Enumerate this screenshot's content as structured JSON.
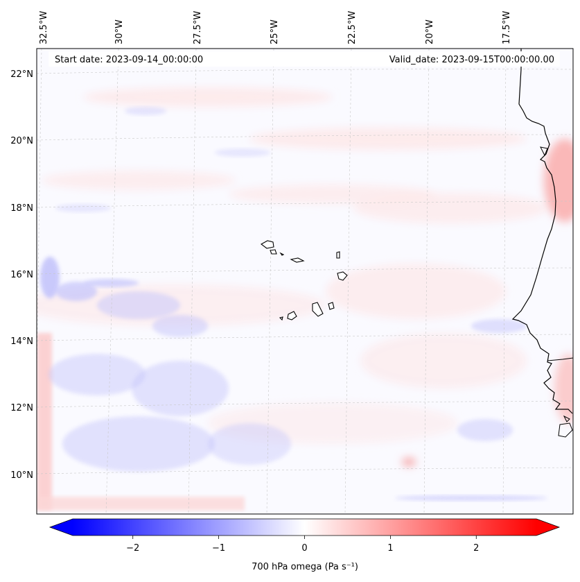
{
  "header": {
    "start_date": "Start date: 2023-09-14_00:00:00",
    "valid_date": "Valid_date: 2023-09-15T00:00:00.00"
  },
  "map": {
    "extent": {
      "lon_min": -32.8,
      "lon_max": -15.3,
      "lat_min": 8.8,
      "lat_max": 22.8
    },
    "lon_ticks": [
      {
        "value": -32.5,
        "label": "32.5°W"
      },
      {
        "value": -30,
        "label": "30°W"
      },
      {
        "value": -27.5,
        "label": "27.5°W"
      },
      {
        "value": -25,
        "label": "25°W"
      },
      {
        "value": -22.5,
        "label": "22.5°W"
      },
      {
        "value": -20,
        "label": "20°W"
      },
      {
        "value": -17.5,
        "label": "17.5°W"
      }
    ],
    "lat_ticks": [
      {
        "value": 22,
        "label": "22°N"
      },
      {
        "value": 20,
        "label": "20°N"
      },
      {
        "value": 18,
        "label": "18°N"
      },
      {
        "value": 16,
        "label": "16°N"
      },
      {
        "value": 14,
        "label": "14°N"
      },
      {
        "value": 12,
        "label": "12°N"
      },
      {
        "value": 10,
        "label": "10°N"
      }
    ],
    "gridlines": true,
    "field_colormap": "bwr"
  },
  "colorbar": {
    "label": "700 hPa omega (Pa s⁻¹)",
    "vmin": -2.7,
    "vmax": 2.7,
    "ticks": [
      {
        "value": -2,
        "label": "−2"
      },
      {
        "value": -1,
        "label": "−1"
      },
      {
        "value": 0,
        "label": "0"
      },
      {
        "value": 1,
        "label": "1"
      },
      {
        "value": 2,
        "label": "2"
      }
    ],
    "extend": "both",
    "colors": {
      "low": "#0000ff",
      "mid": "#ffffff",
      "high": "#ff0000"
    }
  }
}
